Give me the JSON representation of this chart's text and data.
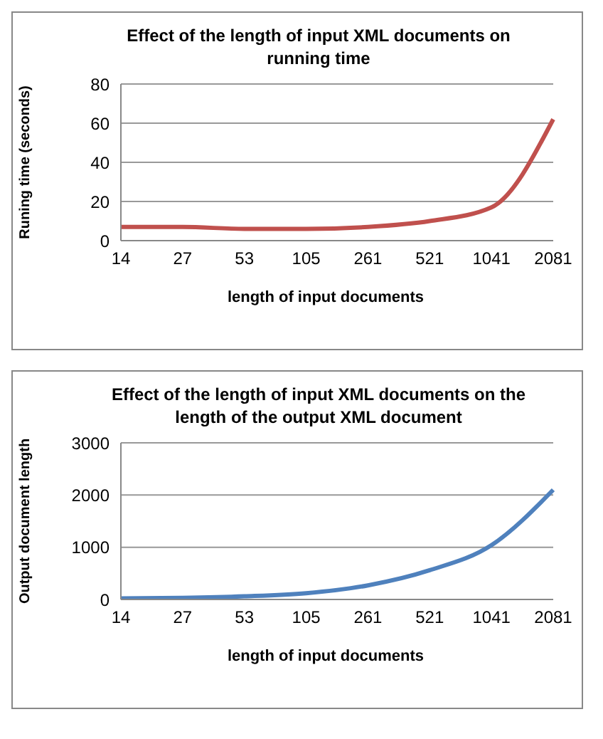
{
  "chart_data": [
    {
      "type": "line",
      "title": "Effect of the  length of input XML documents  on running time",
      "xlabel": "length of input documents",
      "ylabel": "Runing time  (seconds)",
      "categories": [
        "14",
        "27",
        "53",
        "105",
        "261",
        "521",
        "1041",
        "2081"
      ],
      "series": [
        {
          "color": "#c0504d",
          "values": [
            7,
            7,
            6,
            6,
            7,
            10,
            17,
            62
          ]
        }
      ],
      "ylim": [
        0,
        80
      ],
      "yticks": [
        0,
        20,
        40,
        60,
        80
      ],
      "grid": "y",
      "legend": false,
      "marker": "none"
    },
    {
      "type": "line",
      "title": "Effect of the  length of input XML documents  on the length of  the  output  XML document",
      "xlabel": "length of input documents",
      "ylabel": "Output document length",
      "categories": [
        "14",
        "27",
        "53",
        "105",
        "261",
        "521",
        "1041",
        "2081"
      ],
      "series": [
        {
          "color": "#4f81bd",
          "values": [
            20,
            30,
            60,
            120,
            270,
            560,
            1040,
            2100
          ]
        }
      ],
      "ylim": [
        0,
        3000
      ],
      "yticks": [
        0,
        1000,
        2000,
        3000
      ],
      "grid": "y",
      "legend": false,
      "marker": "none"
    }
  ]
}
